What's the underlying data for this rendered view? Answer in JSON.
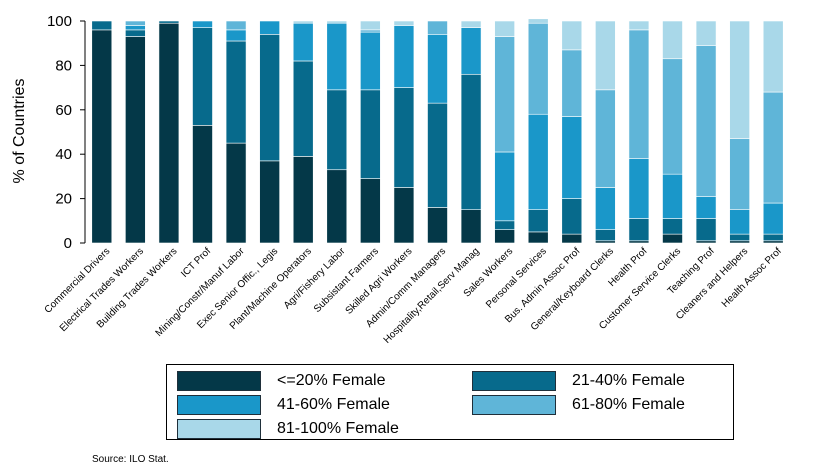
{
  "chart_data": {
    "type": "bar",
    "stacked": true,
    "ylabel": "% of Countries",
    "xlabel": "",
    "ylim": [
      0,
      100
    ],
    "yticks": [
      0,
      20,
      40,
      60,
      80,
      100
    ],
    "grid": false,
    "legend_position": "bottom",
    "categories": [
      "Commercial Drivers",
      "Electrical Trades Workers",
      "Building Trades Workers",
      "ICT Prof",
      "Mining/Constr/Manuf Labor",
      "Exec Senior Offic., Legis",
      "Plant/Machine Operators",
      "Agri/Fishery Labor",
      "Subsistant Farmers",
      "Skilled Agri Workers",
      "Admin/Comm Managers",
      "Hospitality,Retail,Serv Manag",
      "Sales Workers",
      "Personal Services",
      "Bus. Admin Assoc Prof",
      "General/Keyboard Clerks",
      "Health Prof",
      "Customer Service Clerks",
      "Teaching Prof",
      "Cleaners and Helpers",
      "Health Assoc Prof"
    ],
    "series": [
      {
        "name": "<=20% Female",
        "color": "#043848",
        "values": [
          96,
          93,
          99,
          53,
          45,
          37,
          39,
          33,
          29,
          25,
          16,
          15,
          6,
          5,
          4,
          1,
          1,
          4,
          1,
          1,
          1
        ]
      },
      {
        "name": "21-40% Female",
        "color": "#076a8c",
        "values": [
          4,
          3,
          1,
          44,
          46,
          57,
          43,
          36,
          40,
          45,
          47,
          61,
          4,
          10,
          16,
          5,
          10,
          7,
          10,
          3,
          3
        ]
      },
      {
        "name": "41-60% Female",
        "color": "#1a97c9",
        "values": [
          0,
          2,
          0,
          3,
          5,
          6,
          17,
          30,
          26,
          28,
          31,
          21,
          31,
          43,
          37,
          19,
          27,
          20,
          10,
          11,
          14
        ]
      },
      {
        "name": "61-80% Female",
        "color": "#5fb5d8",
        "values": [
          0,
          2,
          0,
          0,
          4,
          0,
          0,
          0,
          1,
          0,
          6,
          0,
          52,
          41,
          30,
          44,
          58,
          52,
          68,
          32,
          50
        ]
      },
      {
        "name": "81-100% Female",
        "color": "#a9d8e9",
        "values": [
          0,
          0,
          0,
          0,
          0,
          0,
          1,
          1,
          4,
          2,
          0,
          3,
          7,
          2,
          13,
          31,
          4,
          17,
          11,
          53,
          32
        ]
      }
    ],
    "source": "Source: ILO Stat."
  }
}
